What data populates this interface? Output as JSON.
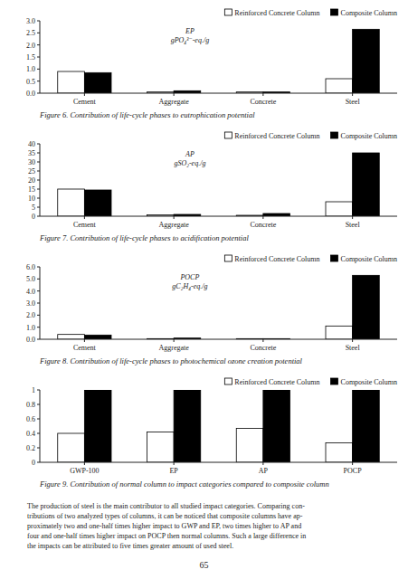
{
  "chart_data": [
    {
      "type": "bar",
      "title": "Figure 6. Contribution of life-cycle phases to eutrophication potential",
      "annotations": [
        "EP",
        "gPO₄³⁻-eq./g"
      ],
      "categories": [
        "Cement",
        "Aggregate",
        "Concrete",
        "Steel"
      ],
      "series": [
        {
          "name": "Reinforced Concrete Column",
          "color": "white",
          "values": [
            0.9,
            0.05,
            0.05,
            0.6
          ]
        },
        {
          "name": "Composite Column",
          "color": "black",
          "values": [
            0.85,
            0.1,
            0.05,
            2.65
          ]
        }
      ],
      "ylim": [
        0,
        3.0
      ],
      "yticks": [
        {
          "value": 0,
          "label": "0.0"
        },
        0.5,
        {
          "value": 1,
          "label": "1.0"
        },
        1.5,
        {
          "value": 2,
          "label": "2.0"
        },
        2.5,
        {
          "value": 3,
          "label": "3.0"
        }
      ],
      "grid": false,
      "legend": "top-right"
    },
    {
      "type": "bar",
      "title": "Figure 7. Contribution of life-cycle phases to acidification potential",
      "annotations": [
        "AP",
        "gSO₂-eq./g"
      ],
      "categories": [
        "Cement",
        "Aggregate",
        "Concrete",
        "Steel"
      ],
      "series": [
        {
          "name": "Reinforced Concrete Column",
          "color": "white",
          "values": [
            15.0,
            0.8,
            0.5,
            8.0
          ]
        },
        {
          "name": "Composite Column",
          "color": "black",
          "values": [
            14.5,
            1.0,
            1.5,
            35.0
          ]
        }
      ],
      "ylim": [
        0,
        40
      ],
      "yticks": [
        0,
        5,
        10,
        15,
        20,
        25,
        30,
        35,
        40
      ],
      "grid": false,
      "legend": "top-right"
    },
    {
      "type": "bar",
      "title": "Figure 8. Contribution of life-cycle phases to photochemical ozone creation potential",
      "annotations": [
        "POCP",
        "gC₂H₄-eq./g"
      ],
      "categories": [
        "Cement",
        "Aggregate",
        "Concrete",
        "Steel"
      ],
      "series": [
        {
          "name": "Reinforced Concrete Column",
          "color": "white",
          "values": [
            0.4,
            0.05,
            0.05,
            1.1
          ]
        },
        {
          "name": "Composite Column",
          "color": "black",
          "values": [
            0.35,
            0.1,
            0.05,
            5.3
          ]
        }
      ],
      "ylim": [
        0,
        6.0
      ],
      "yticks": [
        {
          "value": 0,
          "label": "0.0"
        },
        {
          "value": 1,
          "label": "1.0"
        },
        {
          "value": 2,
          "label": "2.0"
        },
        {
          "value": 3,
          "label": "3.0"
        },
        {
          "value": 4,
          "label": "4.0"
        },
        {
          "value": 5,
          "label": "5.0"
        },
        {
          "value": 6,
          "label": "6.0"
        }
      ],
      "grid": false,
      "legend": "top-right"
    },
    {
      "type": "bar",
      "title": "Figure 9. Contribution of normal column to impact categories compared to composite column",
      "categories": [
        "GWP-100",
        "EP",
        "AP",
        "POCP"
      ],
      "series": [
        {
          "name": "Reinforced Concrete Column",
          "color": "white",
          "values": [
            0.4,
            0.42,
            0.47,
            0.27
          ]
        },
        {
          "name": "Composite Column",
          "color": "black",
          "values": [
            1.0,
            1.0,
            1.0,
            1.0
          ]
        }
      ],
      "ylim": [
        0,
        1.0
      ],
      "yticks": [
        0,
        0.2,
        0.4,
        0.6,
        0.8,
        1
      ],
      "grid": false,
      "legend": "top-right"
    }
  ],
  "paragraph": [
    "The production of steel is the main contributor to all studied impact categories. Comparing con-",
    "tributions of two analyzed types of columns, it can be noticed that composite columns have ap-",
    "proximately two and one-half times higher impact to GWP and EP, two times higher to AP and",
    "four and one-half times higher impact on POCP then normal columns. Such a large difference in",
    "the impacts can be attributed to five times greater amount of used steel."
  ],
  "page_number": "65"
}
